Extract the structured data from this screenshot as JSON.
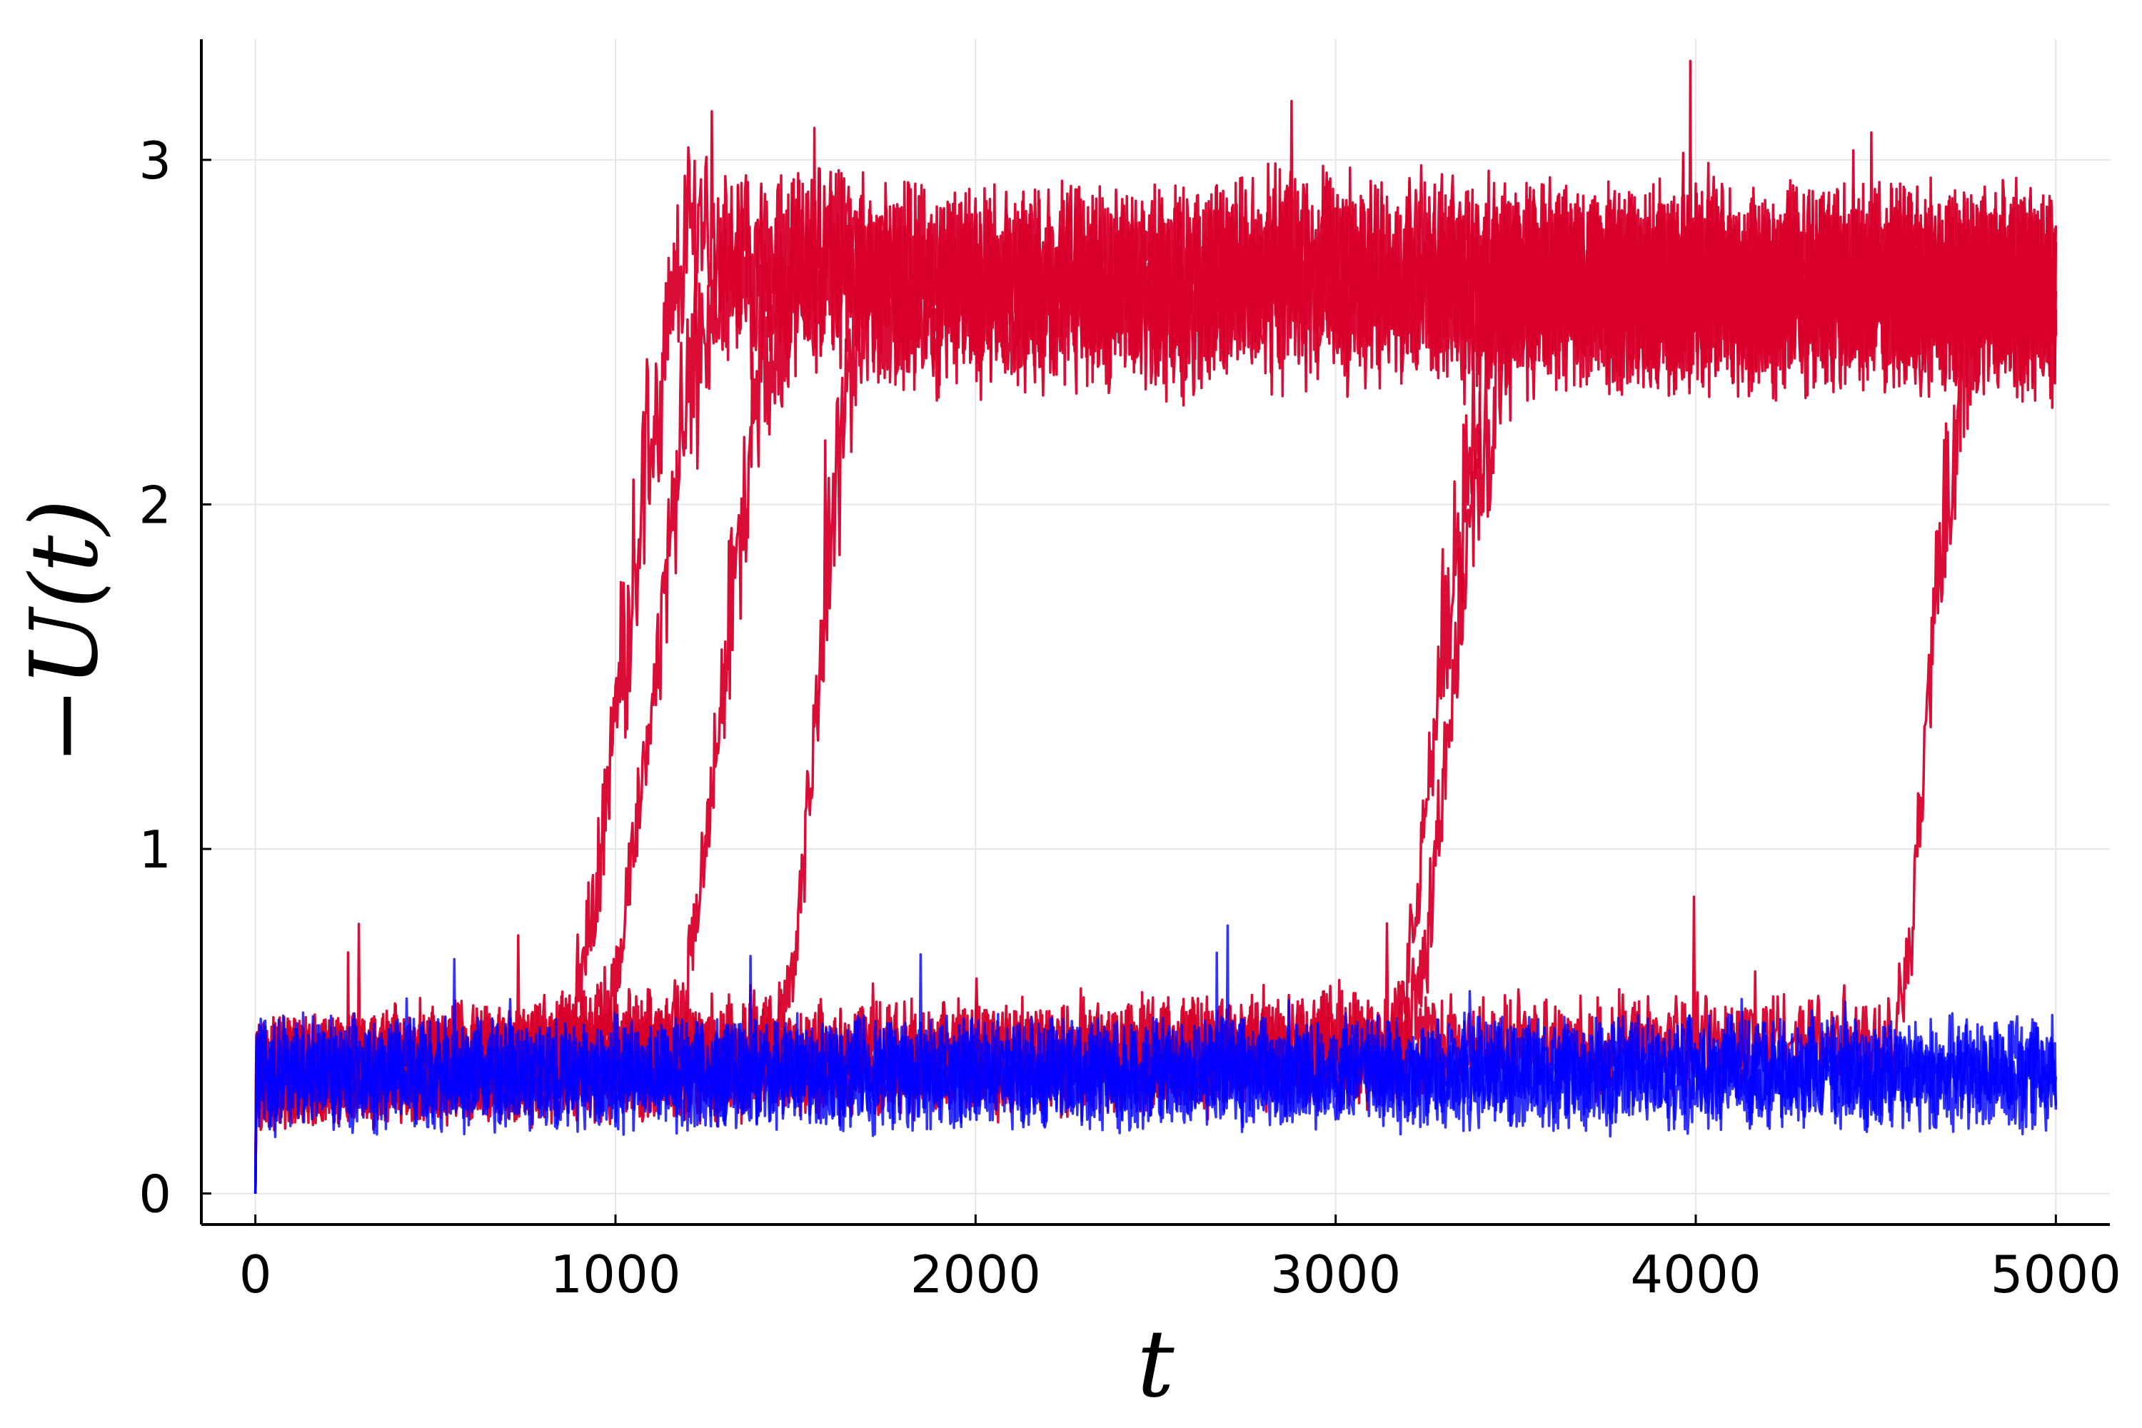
{
  "chart_data": {
    "type": "line",
    "title": "",
    "xlabel": "t",
    "ylabel": "−U(t)",
    "xlim": [
      -150,
      5150
    ],
    "ylim": [
      -0.09,
      3.35
    ],
    "xticks": [
      0,
      1000,
      2000,
      3000,
      4000,
      5000
    ],
    "yticks": [
      0,
      1,
      2,
      3
    ],
    "xtick_labels": [
      "0",
      "1000",
      "2000",
      "3000",
      "4000",
      "5000"
    ],
    "ytick_labels": [
      "0",
      "1",
      "2",
      "3"
    ],
    "grid": true,
    "legend": "none",
    "colors": {
      "red": "#d8002b",
      "blue": "#0000ff"
    },
    "series": [
      {
        "color": "red",
        "x": [
          0,
          800,
          880,
          950,
          1000,
          1100,
          1150,
          1200,
          1250,
          1300,
          1400,
          1600,
          1800,
          2000,
          2500,
          3000,
          3500,
          4000,
          4500,
          5000
        ],
        "y": [
          0.35,
          0.38,
          0.5,
          0.9,
          1.4,
          2.2,
          2.5,
          2.8,
          2.85,
          2.7,
          2.65,
          2.7,
          2.65,
          2.6,
          2.65,
          2.7,
          2.65,
          2.7,
          2.6,
          2.65
        ]
      },
      {
        "color": "red",
        "x": [
          0,
          900,
          1000,
          1050,
          1100,
          1150,
          1200,
          1250,
          1300,
          1400,
          1600,
          1800,
          2000,
          2500,
          3000,
          3500,
          4000,
          4500,
          5000
        ],
        "y": [
          0.35,
          0.4,
          0.6,
          1.0,
          1.4,
          1.9,
          2.3,
          2.5,
          2.7,
          2.65,
          2.7,
          2.6,
          2.65,
          2.6,
          2.7,
          2.65,
          2.6,
          2.65,
          2.6
        ]
      },
      {
        "color": "red",
        "x": [
          0,
          1150,
          1200,
          1250,
          1300,
          1350,
          1400,
          1500,
          1600,
          1800,
          2000,
          2500,
          3000,
          3500,
          4000,
          4500,
          5000
        ],
        "y": [
          0.35,
          0.45,
          0.6,
          1.0,
          1.5,
          2.0,
          2.4,
          2.65,
          2.7,
          2.6,
          2.65,
          2.6,
          2.65,
          2.6,
          2.65,
          2.6,
          2.65
        ]
      },
      {
        "color": "red",
        "x": [
          0,
          1450,
          1500,
          1550,
          1600,
          1650,
          1700,
          1800,
          2000,
          2500,
          3000,
          3500,
          4000,
          4500,
          5000
        ],
        "y": [
          0.35,
          0.45,
          0.7,
          1.3,
          1.9,
          2.4,
          2.65,
          2.7,
          2.6,
          2.65,
          2.6,
          2.7,
          2.6,
          2.65,
          2.6
        ]
      },
      {
        "color": "red",
        "x": [
          0,
          3150,
          3200,
          3250,
          3300,
          3350,
          3400,
          3450,
          3500,
          4000,
          4500,
          5000
        ],
        "y": [
          0.35,
          0.4,
          0.6,
          1.1,
          1.6,
          2.0,
          2.4,
          2.6,
          2.65,
          2.6,
          2.65,
          2.6
        ]
      },
      {
        "color": "red",
        "x": [
          0,
          3200,
          3250,
          3300,
          3350,
          3400,
          3450,
          3500,
          3550,
          4000,
          4500,
          5000
        ],
        "y": [
          0.35,
          0.45,
          0.7,
          1.2,
          1.7,
          2.1,
          2.4,
          2.6,
          2.65,
          2.6,
          2.65,
          2.6
        ]
      },
      {
        "color": "red",
        "x": [
          0,
          4550,
          4600,
          4650,
          4700,
          4750,
          4800,
          4900,
          5000
        ],
        "y": [
          0.35,
          0.45,
          0.8,
          1.5,
          2.0,
          2.4,
          2.6,
          2.65,
          2.7
        ]
      },
      {
        "color": "blue",
        "x": [
          0,
          1000,
          2000,
          3000,
          4000,
          5000
        ],
        "y": [
          0.36,
          0.35,
          0.36,
          0.35,
          0.36,
          0.35
        ]
      },
      {
        "color": "blue",
        "x": [
          0,
          1000,
          2000,
          3000,
          4000,
          5000
        ],
        "y": [
          0.34,
          0.35,
          0.34,
          0.36,
          0.35,
          0.34
        ]
      },
      {
        "color": "blue",
        "x": [
          0,
          1000,
          2000,
          3000,
          4000,
          5000
        ],
        "y": [
          0.35,
          0.34,
          0.35,
          0.35,
          0.34,
          0.36
        ]
      }
    ]
  }
}
